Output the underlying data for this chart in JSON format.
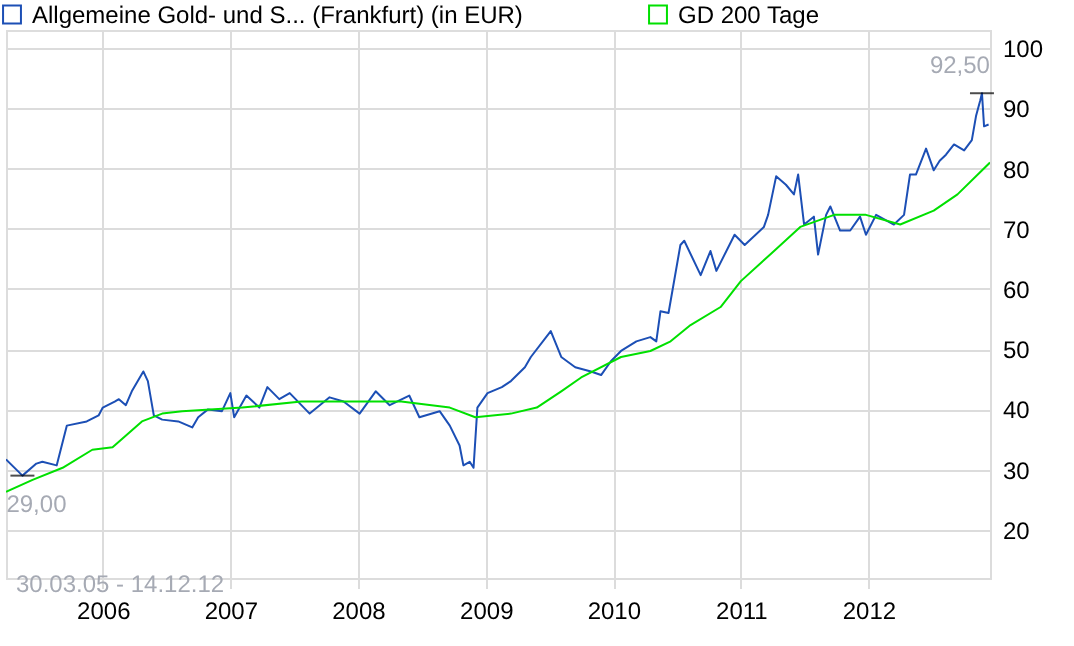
{
  "chart_data": {
    "type": "line",
    "legend": "top left",
    "grid": true,
    "marker": "none",
    "line_style": "solid",
    "xlim": [
      "2005-03-30",
      "2012-12-14"
    ],
    "xticks": [
      "2006",
      "2007",
      "2008",
      "2009",
      "2010",
      "2011",
      "2012"
    ],
    "ylim": [
      12,
      103
    ],
    "yticks": [
      20,
      30,
      40,
      50,
      60,
      70,
      80,
      90,
      100
    ],
    "annotations": [
      {
        "text": "92,50",
        "x": "2012-11-21",
        "y": 92.5
      },
      {
        "text": "29,00",
        "x": "2005-05-16",
        "y": 29.0
      },
      "30.03.05 - 14.12.12"
    ],
    "series": [
      {
        "name": "Allgemeine Gold- und S... (Frankfurt) (in EUR)",
        "color": "#1c4fb5",
        "x": [
          "2005-03-30",
          "2005-05-16",
          "2005-06-25",
          "2005-07-12",
          "2005-08-22",
          "2005-09-20",
          "2005-11-16",
          "2005-12-20",
          "2006-01-01",
          "2006-02-04",
          "2006-02-16",
          "2006-03-08",
          "2006-03-25",
          "2006-04-27",
          "2006-05-10",
          "2006-05-27",
          "2006-06-20",
          "2006-08-05",
          "2006-09-14",
          "2006-10-01",
          "2006-10-29",
          "2006-12-08",
          "2007-01-01",
          "2007-01-12",
          "2007-02-16",
          "2007-03-25",
          "2007-04-17",
          "2007-05-21",
          "2007-06-20",
          "2007-08-16",
          "2007-10-12",
          "2007-11-21",
          "2008-01-06",
          "2008-02-21",
          "2008-04-01",
          "2008-05-27",
          "2008-06-25",
          "2008-08-22",
          "2008-09-20",
          "2008-10-18",
          "2008-10-29",
          "2008-11-16",
          "2008-11-27",
          "2008-12-08",
          "2009-01-06",
          "2009-02-16",
          "2009-03-14",
          "2009-04-23",
          "2009-05-10",
          "2009-07-06",
          "2009-08-05",
          "2009-09-14",
          "2009-10-29",
          "2009-11-27",
          "2009-12-25",
          "2010-01-23",
          "2010-03-08",
          "2010-04-17",
          "2010-05-04",
          "2010-05-16",
          "2010-06-08",
          "2010-07-12",
          "2010-07-23",
          "2010-09-08",
          "2010-10-06",
          "2010-10-23",
          "2010-12-14",
          "2011-01-12",
          "2011-03-08",
          "2011-03-20",
          "2011-04-12",
          "2011-05-10",
          "2011-06-02",
          "2011-06-14",
          "2011-07-01",
          "2011-07-29",
          "2011-08-10",
          "2011-09-02",
          "2011-09-14",
          "2011-10-12",
          "2011-11-10",
          "2011-12-08",
          "2011-12-25",
          "2012-01-23",
          "2012-03-14",
          "2012-04-12",
          "2012-04-29",
          "2012-05-16",
          "2012-06-14",
          "2012-07-06",
          "2012-07-23",
          "2012-08-10",
          "2012-09-02",
          "2012-10-01",
          "2012-10-23",
          "2012-11-04",
          "2012-11-16",
          "2012-11-21",
          "2012-11-27",
          "2012-12-10"
        ],
        "values": [
          31.7,
          29.0,
          31,
          31.3,
          30.7,
          37.3,
          38,
          39,
          40.3,
          41.3,
          41.7,
          40.7,
          43,
          46.3,
          44.7,
          39,
          38.3,
          38,
          37,
          38.7,
          40,
          39.7,
          42.7,
          38.7,
          42.3,
          40.3,
          43.7,
          41.7,
          42.7,
          39.3,
          42,
          41.3,
          39.3,
          43,
          40.7,
          42.3,
          38.7,
          39.7,
          37.3,
          34,
          30.7,
          31.3,
          30.3,
          40.3,
          42.7,
          43.7,
          44.7,
          47,
          48.7,
          53,
          48.7,
          47,
          46.3,
          45.7,
          48,
          49.7,
          51.3,
          52,
          51.3,
          56.3,
          56,
          67.3,
          68,
          62.3,
          66.3,
          63,
          69,
          67.3,
          70.3,
          72.3,
          78.7,
          77.3,
          75.7,
          79,
          70.7,
          72,
          65.7,
          72.3,
          73.7,
          69.7,
          69.7,
          72,
          69,
          72.3,
          70.7,
          72.3,
          79,
          79,
          83.3,
          79.7,
          81.3,
          82.3,
          84,
          83,
          84.7,
          88.7,
          91.3,
          92.5,
          87,
          87.3
        ]
      },
      {
        "name": "GD 200 Tage",
        "color": "#00e000",
        "x": [
          "2005-03-30",
          "2005-06-14",
          "2005-09-08",
          "2005-12-02",
          "2006-01-29",
          "2006-04-23",
          "2006-06-20",
          "2006-08-16",
          "2007-02-04",
          "2007-07-23",
          "2008-05-04",
          "2008-09-20",
          "2008-12-02",
          "2009-03-14",
          "2009-05-27",
          "2009-08-05",
          "2009-10-01",
          "2010-01-23",
          "2010-04-17",
          "2010-06-14",
          "2010-08-10",
          "2010-11-04",
          "2011-01-01",
          "2011-04-06",
          "2011-06-20",
          "2011-09-25",
          "2011-12-25",
          "2012-04-01",
          "2012-07-06",
          "2012-09-12",
          "2012-12-14"
        ],
        "values": [
          26.3,
          28.3,
          30.3,
          33.3,
          33.7,
          38,
          39.3,
          39.7,
          40.3,
          41.3,
          41.3,
          40.3,
          38.7,
          39.3,
          40.3,
          43,
          45.3,
          48.7,
          49.7,
          51.3,
          54,
          57,
          61.3,
          66.3,
          70.3,
          72.3,
          72.3,
          70.7,
          73,
          75.7,
          81
        ]
      }
    ]
  }
}
